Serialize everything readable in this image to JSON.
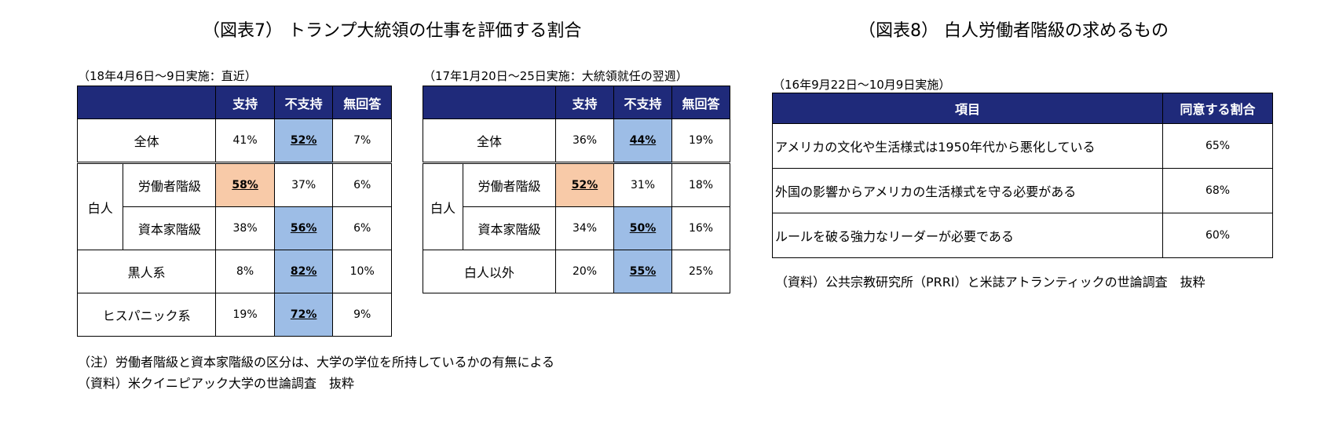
{
  "fig7": {
    "title": "（図表7） トランプ大統領の仕事を評価する割合",
    "left": {
      "caption": "（18年4月6日～9日実施：直近）",
      "headers": [
        "支持",
        "不支持",
        "無回答"
      ],
      "rows": {
        "all": {
          "label": "全体",
          "vals": [
            "41%",
            "52%",
            "7%"
          ]
        },
        "white_group": "白人",
        "worker": {
          "label": "労働者階級",
          "vals": [
            "58%",
            "37%",
            "6%"
          ]
        },
        "capital": {
          "label": "資本家階級",
          "vals": [
            "38%",
            "56%",
            "6%"
          ]
        },
        "black": {
          "label": "黒人系",
          "vals": [
            "8%",
            "82%",
            "10%"
          ]
        },
        "hispanic": {
          "label": "ヒスパニック系",
          "vals": [
            "19%",
            "72%",
            "9%"
          ]
        }
      }
    },
    "right": {
      "caption": "（17年1月20日～25日実施：大統領就任の翌週）",
      "headers": [
        "支持",
        "不支持",
        "無回答"
      ],
      "rows": {
        "all": {
          "label": "全体",
          "vals": [
            "36%",
            "44%",
            "19%"
          ]
        },
        "white_group": "白人",
        "worker": {
          "label": "労働者階級",
          "vals": [
            "52%",
            "31%",
            "18%"
          ]
        },
        "capital": {
          "label": "資本家階級",
          "vals": [
            "34%",
            "50%",
            "16%"
          ]
        },
        "nonwhite": {
          "label": "白人以外",
          "vals": [
            "20%",
            "55%",
            "25%"
          ]
        }
      }
    },
    "note": "（注）労働者階級と資本家階級の区分は、大学の学位を所持しているかの有無による",
    "source": "（資料）米クイニピアック大学の世論調査　抜粋"
  },
  "fig8": {
    "title": "（図表8） 白人労働者階級の求めるもの",
    "caption": "（16年9月22日～10月9日実施）",
    "headers": [
      "項目",
      "同意する割合"
    ],
    "rows": [
      {
        "item": "アメリカの文化や生活様式は1950年代から悪化している",
        "pct": "65%"
      },
      {
        "item": "外国の影響からアメリカの生活様式を守る必要がある",
        "pct": "68%"
      },
      {
        "item": "ルールを破る強力なリーダーが必要である",
        "pct": "60%"
      }
    ],
    "source": "（資料）公共宗教研究所（PRRI）と米誌アトランティックの世論調査　抜粋"
  },
  "colors": {
    "header_bg": "#1f2a7a",
    "highlight_blue": "#9dbde6",
    "highlight_orange": "#f8caa8"
  }
}
